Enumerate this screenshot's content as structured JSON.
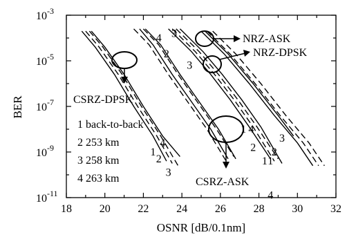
{
  "chart_data": {
    "type": "line",
    "xlabel": "OSNR [dB/0.1nm]",
    "ylabel": "BER",
    "xlim": [
      18,
      32
    ],
    "ylim_log10": [
      -11,
      -3
    ],
    "y_scale": "log",
    "x_ticks": [
      "18",
      "20",
      "22",
      "24",
      "26",
      "28",
      "30",
      "32"
    ],
    "y_ticks": [
      {
        "base": "10",
        "exp": "-3"
      },
      {
        "base": "10",
        "exp": "-5"
      },
      {
        "base": "10",
        "exp": "-7"
      },
      {
        "base": "10",
        "exp": "-9"
      },
      {
        "base": "10",
        "exp": "-11"
      }
    ],
    "grid": false,
    "groups": [
      {
        "name": "CSRZ-DPSK",
        "series": [
          {
            "label": "1",
            "points": [
              [
                18.8,
                -3.7
              ],
              [
                19.5,
                -4.4
              ],
              [
                20.5,
                -5.6
              ],
              [
                21.5,
                -7.0
              ],
              [
                22.5,
                -8.3
              ],
              [
                23.2,
                -9.4
              ]
            ]
          },
          {
            "label": "2",
            "points": [
              [
                19.0,
                -3.7
              ],
              [
                19.7,
                -4.4
              ],
              [
                20.7,
                -5.6
              ],
              [
                21.7,
                -7.0
              ],
              [
                22.7,
                -8.3
              ],
              [
                23.5,
                -9.5
              ]
            ]
          },
          {
            "label": "3",
            "points": [
              [
                19.2,
                -3.7
              ],
              [
                19.9,
                -4.4
              ],
              [
                20.9,
                -5.6
              ],
              [
                21.9,
                -7.0
              ],
              [
                22.9,
                -8.3
              ],
              [
                23.8,
                -9.6
              ]
            ]
          },
          {
            "label": "4",
            "points": [
              [
                19.3,
                -3.7
              ],
              [
                20.0,
                -4.4
              ],
              [
                21.0,
                -5.6
              ],
              [
                22.0,
                -7.0
              ],
              [
                23.0,
                -8.3
              ],
              [
                23.9,
                -9.2
              ]
            ]
          }
        ]
      },
      {
        "name": "CSRZ-ASK",
        "series": [
          {
            "label": "1",
            "points": [
              [
                21.8,
                -3.6
              ],
              [
                22.5,
                -4.3
              ],
              [
                23.5,
                -5.6
              ],
              [
                24.5,
                -6.8
              ],
              [
                25.5,
                -8.0
              ],
              [
                26.4,
                -9.3
              ]
            ]
          },
          {
            "label": "2",
            "points": [
              [
                21.5,
                -3.6
              ],
              [
                22.3,
                -4.3
              ],
              [
                23.3,
                -5.6
              ],
              [
                24.3,
                -6.8
              ],
              [
                25.3,
                -8.0
              ],
              [
                26.3,
                -9.4
              ]
            ]
          },
          {
            "label": "3",
            "points": [
              [
                22.0,
                -3.6
              ],
              [
                22.8,
                -4.3
              ],
              [
                23.8,
                -5.6
              ],
              [
                24.8,
                -6.8
              ],
              [
                25.8,
                -8.0
              ],
              [
                26.7,
                -9.2
              ]
            ]
          },
          {
            "label": "4",
            "points": [
              [
                22.1,
                -3.6
              ],
              [
                22.9,
                -4.3
              ],
              [
                23.9,
                -5.6
              ],
              [
                24.9,
                -6.8
              ],
              [
                25.9,
                -8.0
              ],
              [
                26.8,
                -9.3
              ]
            ]
          }
        ]
      },
      {
        "name": "NRZ-ASK",
        "series": [
          {
            "label": "1",
            "points": [
              [
                23.3,
                -3.6
              ],
              [
                24.5,
                -4.6
              ],
              [
                25.5,
                -5.6
              ],
              [
                26.5,
                -6.7
              ],
              [
                27.5,
                -7.9
              ],
              [
                28.6,
                -9.3
              ]
            ]
          },
          {
            "label": "2",
            "points": [
              [
                23.5,
                -3.6
              ],
              [
                24.7,
                -4.6
              ],
              [
                25.7,
                -5.6
              ],
              [
                26.7,
                -6.7
              ],
              [
                27.7,
                -7.9
              ],
              [
                28.8,
                -9.4
              ]
            ]
          },
          {
            "label": "3",
            "points": [
              [
                23.7,
                -3.6
              ],
              [
                24.9,
                -4.6
              ],
              [
                25.9,
                -5.6
              ],
              [
                26.9,
                -6.7
              ],
              [
                27.9,
                -7.9
              ],
              [
                29.0,
                -9.3
              ]
            ]
          },
          {
            "label": "4",
            "points": [
              [
                23.9,
                -3.6
              ],
              [
                25.1,
                -4.6
              ],
              [
                26.1,
                -5.6
              ],
              [
                27.1,
                -6.7
              ],
              [
                28.1,
                -7.9
              ],
              [
                29.2,
                -9.5
              ]
            ]
          }
        ]
      },
      {
        "name": "NRZ-DPSK",
        "series": [
          {
            "label": "1",
            "points": [
              [
                25.0,
                -3.7
              ],
              [
                26.2,
                -4.7
              ],
              [
                27.5,
                -6.0
              ],
              [
                28.8,
                -7.4
              ],
              [
                30.0,
                -8.6
              ],
              [
                30.8,
                -9.6
              ]
            ]
          },
          {
            "label": "2",
            "points": [
              [
                25.3,
                -3.7
              ],
              [
                26.5,
                -4.7
              ],
              [
                27.8,
                -6.0
              ],
              [
                29.1,
                -7.4
              ],
              [
                30.3,
                -8.6
              ],
              [
                31.1,
                -9.6
              ]
            ]
          },
          {
            "label": "3",
            "points": [
              [
                25.6,
                -3.7
              ],
              [
                26.8,
                -4.7
              ],
              [
                28.1,
                -6.0
              ],
              [
                29.4,
                -7.4
              ],
              [
                30.6,
                -8.6
              ],
              [
                31.4,
                -9.6
              ]
            ]
          },
          {
            "label": "4",
            "points": [
              [
                25.2,
                -3.7
              ],
              [
                26.4,
                -4.7
              ],
              [
                27.7,
                -6.0
              ],
              [
                29.0,
                -7.4
              ],
              [
                29.8,
                -8.3
              ]
            ]
          }
        ]
      }
    ],
    "legend_box": {
      "entries": [
        "1 back-to-back",
        "2 253 km",
        "3 258 km",
        "4 263 km"
      ],
      "placement": "lower-left"
    },
    "annotations": [
      {
        "text": "NRZ-ASK"
      },
      {
        "text": "NRZ-DPSK"
      },
      {
        "text": "CSRZ-DPSK"
      },
      {
        "text": "CSRZ-ASK"
      }
    ],
    "curve_labels": [
      {
        "text": "4",
        "x": 22.8,
        "y": -4.0
      },
      {
        "text": "2",
        "x": 23.2,
        "y": -4.7
      },
      {
        "text": "3",
        "x": 24.4,
        "y": -5.2
      },
      {
        "text": "3",
        "x": 23.6,
        "y": -3.8
      },
      {
        "text": "1",
        "x": 27.2,
        "y": -8.0
      },
      {
        "text": "4",
        "x": 27.6,
        "y": -8.0
      },
      {
        "text": "2",
        "x": 27.7,
        "y": -8.8
      },
      {
        "text": "1",
        "x": 28.3,
        "y": -9.4
      },
      {
        "text": "3",
        "x": 29.2,
        "y": -8.4
      },
      {
        "text": "2",
        "x": 28.8,
        "y": -9.0
      },
      {
        "text": "1",
        "x": 28.6,
        "y": -9.4
      },
      {
        "text": "4",
        "x": 28.6,
        "y": -10.9
      },
      {
        "text": "1",
        "x": 22.5,
        "y": -9.0
      },
      {
        "text": "2",
        "x": 22.8,
        "y": -9.3
      },
      {
        "text": "4",
        "x": 23.0,
        "y": -8.6
      },
      {
        "text": "3",
        "x": 23.3,
        "y": -9.9
      }
    ]
  }
}
